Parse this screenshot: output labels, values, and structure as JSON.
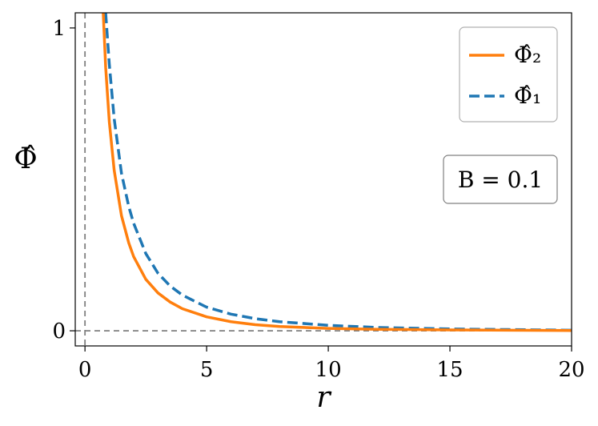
{
  "chart_data": {
    "type": "line",
    "xlabel": "r",
    "ylabel": "Φ̂",
    "xlim": [
      -0.4,
      20
    ],
    "ylim": [
      -0.05,
      1.05
    ],
    "xticks": [
      0,
      5,
      10,
      15,
      20
    ],
    "yticks": [
      0,
      1
    ],
    "grid": false,
    "legend_placement": "top-right",
    "reference_lines": [
      {
        "orientation": "vertical",
        "value": 0,
        "style": "dashed",
        "color": "#808080"
      },
      {
        "orientation": "horizontal",
        "value": 0,
        "style": "dashed",
        "color": "#808080"
      }
    ],
    "annotation": "B = 0.1",
    "series": [
      {
        "name": "Φ̂₂",
        "color": "#ff7f0e",
        "style": "solid",
        "x": [
          0.75,
          0.85,
          1.0,
          1.2,
          1.5,
          1.8,
          2.0,
          2.5,
          3.0,
          3.5,
          4.0,
          5.0,
          6.0,
          7.0,
          8.0,
          10.0,
          12.0,
          15.0,
          20.0
        ],
        "y": [
          1.05,
          0.87,
          0.69,
          0.53,
          0.38,
          0.29,
          0.245,
          0.17,
          0.125,
          0.095,
          0.073,
          0.046,
          0.03,
          0.02,
          0.014,
          0.008,
          0.005,
          0.003,
          0.001
        ]
      },
      {
        "name": "Φ̂₁",
        "color": "#1f77b4",
        "style": "dashed",
        "x": [
          0.85,
          1.0,
          1.2,
          1.5,
          1.8,
          2.0,
          2.5,
          3.0,
          3.5,
          4.0,
          5.0,
          6.0,
          7.0,
          8.0,
          10.0,
          12.0,
          15.0,
          20.0
        ],
        "y": [
          1.05,
          0.88,
          0.7,
          0.52,
          0.41,
          0.355,
          0.255,
          0.19,
          0.148,
          0.118,
          0.078,
          0.055,
          0.04,
          0.03,
          0.018,
          0.011,
          0.006,
          0.002
        ]
      }
    ]
  }
}
